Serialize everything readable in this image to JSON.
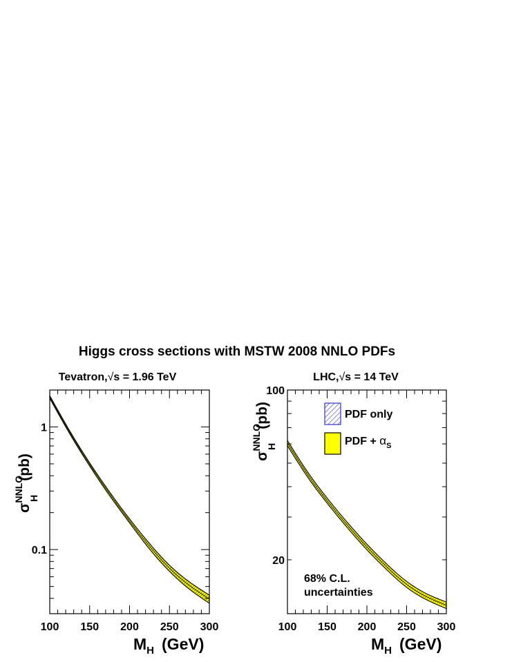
{
  "figure": {
    "title": "Higgs cross sections with MSTW 2008 NNLO PDFs"
  },
  "legend": {
    "pdf_only": "PDF only",
    "pdf_alphas_prefix": "PDF + ",
    "alpha_symbol": "α",
    "alpha_sub": "S",
    "hatch_color": "#3333cc",
    "fill_color": "#ffff00"
  },
  "chart_data": [
    {
      "type": "area",
      "title_prefix": "Tevatron,",
      "sqrt_symbol": "√",
      "title_suffix": "s = 1.96 TeV",
      "xlabel_main": "M",
      "xlabel_sub": "H",
      "xlabel_unit": "(GeV)",
      "ylabel_main": "σ",
      "ylabel_sup": "NNLO",
      "ylabel_sub": "H",
      "ylabel_unit": "(pb)",
      "xlim": [
        100,
        300
      ],
      "ylim": [
        0.03,
        2.0
      ],
      "yscale": "log",
      "x_ticks": [
        "100",
        "150",
        "200",
        "250",
        "300"
      ],
      "y_ticks": [
        {
          "value": 0.1,
          "label": "0.1"
        },
        {
          "value": 1,
          "label": "1"
        }
      ],
      "x": [
        100,
        125,
        150,
        175,
        200,
        225,
        250,
        275,
        300
      ],
      "series": [
        {
          "name": "PDF + αS",
          "lower": [
            1.71,
            0.88,
            0.48,
            0.275,
            0.165,
            0.101,
            0.0665,
            0.0475,
            0.0365
          ],
          "upper": [
            1.8,
            0.93,
            0.51,
            0.295,
            0.178,
            0.112,
            0.0745,
            0.0545,
            0.0425
          ]
        },
        {
          "name": "PDF only",
          "lower": [
            1.72,
            0.885,
            0.483,
            0.277,
            0.166,
            0.102,
            0.067,
            0.048,
            0.037
          ],
          "upper": [
            1.79,
            0.925,
            0.507,
            0.293,
            0.177,
            0.111,
            0.074,
            0.054,
            0.042
          ]
        },
        {
          "name": "central",
          "values": [
            1.755,
            0.905,
            0.495,
            0.285,
            0.171,
            0.1065,
            0.0705,
            0.051,
            0.0395
          ]
        }
      ]
    },
    {
      "type": "area",
      "title_prefix": "LHC,",
      "sqrt_symbol": "√",
      "title_suffix": "s = 14 TeV",
      "xlabel_main": "M",
      "xlabel_sub": "H",
      "xlabel_unit": "(GeV)",
      "ylabel_main": "σ",
      "ylabel_sup": "NNLO",
      "ylabel_sub": "H",
      "ylabel_unit": "(pb)",
      "xlim": [
        100,
        300
      ],
      "ylim": [
        12,
        100
      ],
      "yscale": "log",
      "x_ticks": [
        "100",
        "150",
        "200",
        "250",
        "300"
      ],
      "y_ticks": [
        {
          "value": 20,
          "label": "20"
        },
        {
          "value": 100,
          "label": "100"
        }
      ],
      "annotation": [
        "68% C.L.",
        "uncertainties"
      ],
      "x": [
        100,
        125,
        150,
        175,
        200,
        225,
        250,
        275,
        300
      ],
      "series": [
        {
          "name": "PDF + αS",
          "lower": [
            59.0,
            44.0,
            34.2,
            27.2,
            22.0,
            18.2,
            15.4,
            13.7,
            12.6
          ],
          "upper": [
            62.0,
            46.2,
            35.9,
            28.6,
            23.2,
            19.2,
            16.3,
            14.5,
            13.4
          ]
        },
        {
          "name": "PDF only",
          "lower": [
            59.6,
            44.4,
            34.5,
            27.5,
            22.2,
            18.4,
            15.6,
            13.85,
            12.75
          ],
          "upper": [
            61.4,
            45.8,
            35.6,
            28.3,
            23.0,
            19.0,
            16.1,
            14.35,
            13.25
          ]
        },
        {
          "name": "central",
          "values": [
            60.5,
            45.1,
            35.0,
            27.9,
            22.6,
            18.7,
            15.85,
            14.1,
            13.0
          ]
        }
      ]
    }
  ]
}
